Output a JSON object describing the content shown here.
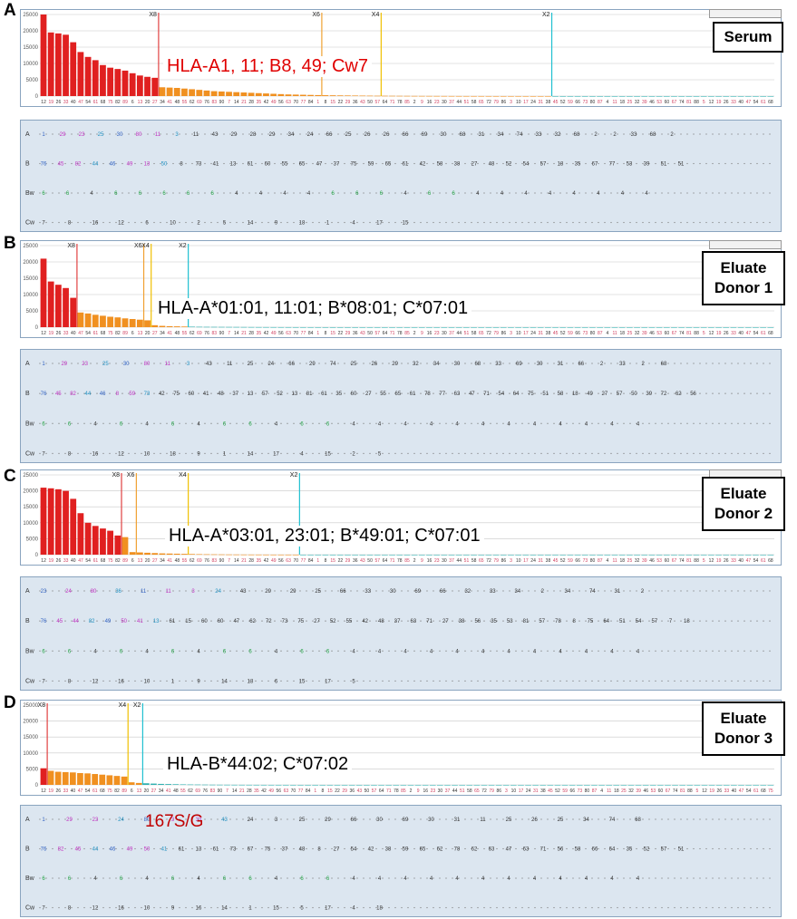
{
  "panels": [
    {
      "letter": "A",
      "title": "Serum",
      "hla": "HLA-A1, 11; B8, 49; Cw7",
      "hla_color": "#e00000",
      "chart_data": {
        "type": "bar",
        "ylim": [
          0,
          25000
        ],
        "yticks": [
          "25000",
          "20000",
          "15000",
          "10000",
          "5000",
          "0"
        ],
        "values": [
          25000,
          19500,
          19200,
          18800,
          16500,
          13500,
          12000,
          11000,
          9500,
          8700,
          8300,
          7800,
          7000,
          6300,
          5900,
          5600,
          2700,
          2600,
          2500,
          2300,
          2100,
          1900,
          1700,
          1500,
          1400,
          1300,
          1200,
          1100,
          1000,
          900,
          800,
          700,
          600,
          500,
          450,
          400,
          350,
          300,
          260,
          230,
          200,
          180,
          160,
          140,
          120,
          100,
          90,
          80,
          70,
          60,
          50,
          45,
          40,
          35,
          30,
          25,
          20,
          18,
          16,
          14,
          12,
          10,
          9,
          8,
          7,
          6,
          5,
          5,
          4,
          4,
          3,
          3,
          3,
          2,
          2,
          2,
          2,
          1,
          1,
          1,
          1,
          1,
          1,
          1,
          1,
          1,
          1,
          1,
          1,
          1,
          1,
          1,
          1,
          1,
          1,
          1,
          1,
          1,
          1
        ],
        "cutoffs": [
          {
            "label": "X8",
            "index": 16,
            "color": "#e04040"
          },
          {
            "label": "X6",
            "index": 38,
            "color": "#f0a030"
          },
          {
            "label": "X4",
            "index": 46,
            "color": "#f0c000"
          },
          {
            "label": "X2",
            "index": 69,
            "color": "#20c0d0"
          }
        ]
      },
      "rows": {
        "A": [
          "1",
          "29",
          "23",
          "25",
          "30",
          "80",
          "11",
          "3",
          "11",
          "43",
          "29",
          "28",
          "29",
          "34",
          "24",
          "66",
          "25",
          "26",
          "26",
          "66",
          "69",
          "30",
          "68",
          "31",
          "34",
          "74",
          "33",
          "32",
          "68",
          "2",
          "2",
          "33",
          "68",
          "2"
        ],
        "B": [
          "76",
          "45",
          "82",
          "44",
          "46",
          "49",
          "13",
          "50",
          "8",
          "73",
          "41",
          "13",
          "61",
          "60",
          "55",
          "65",
          "47",
          "37",
          "75",
          "59",
          "65",
          "61",
          "42",
          "58",
          "38",
          "27",
          "48",
          "52",
          "54",
          "57",
          "18",
          "35",
          "67",
          "77",
          "53",
          "39",
          "51",
          "51"
        ],
        "Bw": [
          "6",
          "6",
          "4",
          "6",
          "6",
          "6",
          "6",
          "6",
          "4",
          "4",
          "4",
          "4",
          "6",
          "6",
          "6",
          "4",
          "6",
          "6",
          "4",
          "4",
          "4",
          "4",
          "4",
          "4",
          "4",
          "4"
        ],
        "Cw": [
          "7",
          "8",
          "16",
          "12",
          "6",
          "10",
          "2",
          "5",
          "14",
          "9",
          "18",
          "1",
          "4",
          "17",
          "15"
        ]
      }
    },
    {
      "letter": "B",
      "title": "Eluate Donor 1",
      "hla": "HLA-A*01:01, 11:01; B*08:01; C*07:01",
      "hla_color": "#000000",
      "chart_data": {
        "type": "bar",
        "ylim": [
          0,
          25000
        ],
        "yticks": [
          "25000",
          "20000",
          "15000",
          "10000",
          "5000",
          "0"
        ],
        "values": [
          21000,
          14000,
          13000,
          12000,
          9000,
          4500,
          4200,
          3800,
          3500,
          3200,
          3000,
          2700,
          2500,
          2300,
          2100,
          600,
          400,
          300,
          250,
          200,
          150,
          120,
          100,
          90,
          80,
          70,
          60,
          50,
          40,
          30,
          25,
          20,
          15,
          12,
          10,
          8,
          6,
          5,
          4,
          3,
          2,
          2,
          2,
          1,
          1,
          1,
          1,
          1,
          1,
          1,
          1,
          1,
          1,
          1,
          1,
          1,
          1,
          1,
          1,
          1,
          1,
          1,
          1,
          1,
          1,
          1,
          1,
          1,
          1,
          1,
          1,
          1,
          1,
          1,
          1,
          1,
          1,
          1,
          1,
          1,
          1,
          1,
          1,
          1,
          1,
          1,
          1,
          1,
          1,
          1,
          1,
          1,
          1,
          1,
          1,
          1,
          1,
          1,
          1
        ],
        "cutoffs": [
          {
            "label": "X8",
            "index": 5,
            "color": "#e04040"
          },
          {
            "label": "X6",
            "index": 14,
            "color": "#f0a030"
          },
          {
            "label": "X4",
            "index": 15,
            "color": "#f0c000"
          },
          {
            "label": "X2",
            "index": 20,
            "color": "#20c0d0"
          }
        ]
      },
      "rows": {
        "A": [
          "1",
          "29",
          "23",
          "25",
          "30",
          "80",
          "11",
          "3",
          "43",
          "11",
          "25",
          "24",
          "66",
          "29",
          "74",
          "25",
          "26",
          "29",
          "32",
          "34",
          "30",
          "68",
          "33",
          "69",
          "30",
          "31",
          "66",
          "2",
          "33",
          "2",
          "68"
        ],
        "B": [
          "76",
          "45",
          "82",
          "44",
          "46",
          "8",
          "59",
          "73",
          "42",
          "75",
          "60",
          "41",
          "48",
          "37",
          "13",
          "57",
          "52",
          "13",
          "81",
          "61",
          "35",
          "60",
          "27",
          "55",
          "65",
          "61",
          "78",
          "77",
          "63",
          "47",
          "71",
          "54",
          "64",
          "75",
          "51",
          "58",
          "18",
          "49",
          "27",
          "57",
          "50",
          "39",
          "72",
          "62",
          "56"
        ],
        "Bw": [
          "6",
          "6",
          "4",
          "6",
          "4",
          "6",
          "4",
          "6",
          "6",
          "4",
          "6",
          "6",
          "4",
          "4",
          "4",
          "4",
          "4",
          "4",
          "4",
          "4",
          "4",
          "4",
          "4",
          "4"
        ],
        "Cw": [
          "7",
          "8",
          "16",
          "12",
          "10",
          "18",
          "9",
          "1",
          "14",
          "17",
          "4",
          "15",
          "2",
          "5"
        ]
      }
    },
    {
      "letter": "C",
      "title": "Eluate Donor 2",
      "hla": "HLA-A*03:01, 23:01; B*49:01; C*07:01",
      "hla_color": "#000000",
      "chart_data": {
        "type": "bar",
        "ylim": [
          0,
          25000
        ],
        "yticks": [
          "25000",
          "20000",
          "15000",
          "10000",
          "5000",
          "0"
        ],
        "values": [
          21000,
          20800,
          20500,
          20000,
          17500,
          13000,
          10000,
          9000,
          8200,
          7500,
          6000,
          5500,
          800,
          700,
          600,
          500,
          400,
          350,
          300,
          250,
          200,
          150,
          120,
          100,
          80,
          60,
          50,
          40,
          30,
          25,
          20,
          15,
          12,
          10,
          8,
          6,
          5,
          4,
          3,
          2,
          2,
          2,
          1,
          1,
          1,
          1,
          1,
          1,
          1,
          1,
          1,
          1,
          1,
          1,
          1,
          1,
          1,
          1,
          1,
          1,
          1,
          1,
          1,
          1,
          1,
          1,
          1,
          1,
          1,
          1,
          1,
          1,
          1,
          1,
          1,
          1,
          1,
          1,
          1,
          1,
          1,
          1,
          1,
          1,
          1,
          1,
          1,
          1,
          1,
          1,
          1,
          1,
          1,
          1,
          1,
          1,
          1,
          1,
          1
        ],
        "cutoffs": [
          {
            "label": "X8",
            "index": 11,
            "color": "#e04040"
          },
          {
            "label": "X6",
            "index": 13,
            "color": "#f0a030"
          },
          {
            "label": "X4",
            "index": 20,
            "color": "#f0c000"
          },
          {
            "label": "X2",
            "index": 35,
            "color": "#20c0d0"
          }
        ]
      },
      "rows": {
        "A": [
          "23",
          "24",
          "80",
          "36",
          "11",
          "11",
          "3",
          "24",
          "43",
          "29",
          "29",
          "25",
          "66",
          "33",
          "30",
          "69",
          "66",
          "32",
          "33",
          "34",
          "2",
          "34",
          "74",
          "31",
          "2"
        ],
        "B": [
          "76",
          "45",
          "44",
          "82",
          "49",
          "50",
          "41",
          "13",
          "61",
          "15",
          "60",
          "60",
          "47",
          "62",
          "72",
          "73",
          "75",
          "27",
          "52",
          "55",
          "42",
          "48",
          "37",
          "63",
          "71",
          "27",
          "38",
          "56",
          "35",
          "53",
          "81",
          "57",
          "78",
          "8",
          "75",
          "64",
          "51",
          "54",
          "57",
          "7",
          "18"
        ],
        "Bw": [
          "6",
          "6",
          "4",
          "6",
          "4",
          "6",
          "4",
          "6",
          "6",
          "4",
          "6",
          "6",
          "4",
          "4",
          "4",
          "4",
          "4",
          "4",
          "4",
          "4",
          "4",
          "4",
          "4",
          "4"
        ],
        "Cw": [
          "7",
          "8",
          "12",
          "16",
          "10",
          "1",
          "9",
          "14",
          "18",
          "6",
          "15",
          "17",
          "5"
        ]
      }
    },
    {
      "letter": "D",
      "title": "Eluate Donor 3",
      "hla": "HLA-B*44:02; C*07:02",
      "hla_color": "#000000",
      "mutation": "167S/G",
      "chart_data": {
        "type": "bar",
        "ylim": [
          0,
          25000
        ],
        "yticks": [
          "25000",
          "20000",
          "15000",
          "10000",
          "5000",
          "0"
        ],
        "values": [
          5200,
          4400,
          4100,
          4000,
          3900,
          3700,
          3600,
          3400,
          3200,
          3000,
          2800,
          2600,
          800,
          600,
          500,
          400,
          300,
          250,
          200,
          150,
          120,
          100,
          80,
          60,
          50,
          40,
          30,
          25,
          20,
          15,
          12,
          10,
          8,
          6,
          5,
          4,
          3,
          2,
          2,
          2,
          1,
          1,
          1,
          1,
          1,
          1,
          1,
          1,
          1,
          1,
          1,
          1,
          1,
          1,
          1,
          1,
          1,
          1,
          1,
          1,
          1,
          1,
          1,
          1,
          1,
          1,
          1,
          1,
          1,
          1,
          1,
          1,
          1,
          1,
          1,
          1,
          1,
          1,
          1,
          1,
          1,
          1,
          1,
          1,
          1,
          1,
          1,
          1,
          1,
          1,
          1,
          1,
          1,
          1,
          1,
          1,
          1,
          1,
          1,
          1
        ],
        "cutoffs": [
          {
            "label": "X8",
            "index": 1,
            "color": "#e04040"
          },
          {
            "label": "X4",
            "index": 12,
            "color": "#f0c000"
          },
          {
            "label": "X2",
            "index": 14,
            "color": "#20c0d0"
          }
        ]
      },
      "rows": {
        "A": [
          "1",
          "29",
          "23",
          "24",
          "80",
          "3",
          "33",
          "43",
          "24",
          "3",
          "25",
          "29",
          "66",
          "30",
          "69",
          "30",
          "31",
          "11",
          "25",
          "26",
          "25",
          "34",
          "74",
          "68"
        ],
        "B": [
          "76",
          "82",
          "45",
          "44",
          "46",
          "49",
          "50",
          "41",
          "61",
          "13",
          "61",
          "73",
          "67",
          "75",
          "37",
          "48",
          "8",
          "27",
          "54",
          "42",
          "38",
          "59",
          "65",
          "62",
          "78",
          "62",
          "63",
          "47",
          "63",
          "71",
          "56",
          "58",
          "66",
          "64",
          "35",
          "52",
          "57",
          "51"
        ],
        "Bw": [
          "6",
          "6",
          "4",
          "6",
          "4",
          "6",
          "4",
          "6",
          "6",
          "4",
          "6",
          "6",
          "4",
          "4",
          "4",
          "4",
          "4",
          "4",
          "4",
          "4",
          "4",
          "4",
          "4",
          "4"
        ],
        "Cw": [
          "7",
          "8",
          "12",
          "16",
          "10",
          "9",
          "16",
          "14",
          "1",
          "15",
          "5",
          "17",
          "4",
          "18"
        ]
      }
    }
  ],
  "colors": {
    "bar_positive": "#e02020",
    "bar_weak": "#f09020",
    "bar_negative": "#30b0b0",
    "box_red": "#d01010",
    "box_green": "#10a040",
    "box_yellow": "#f0b000",
    "box_black": "#000000",
    "box_purple": "#8040c0",
    "box_blue": "#20a0d0",
    "box_orange": "#f07010"
  }
}
